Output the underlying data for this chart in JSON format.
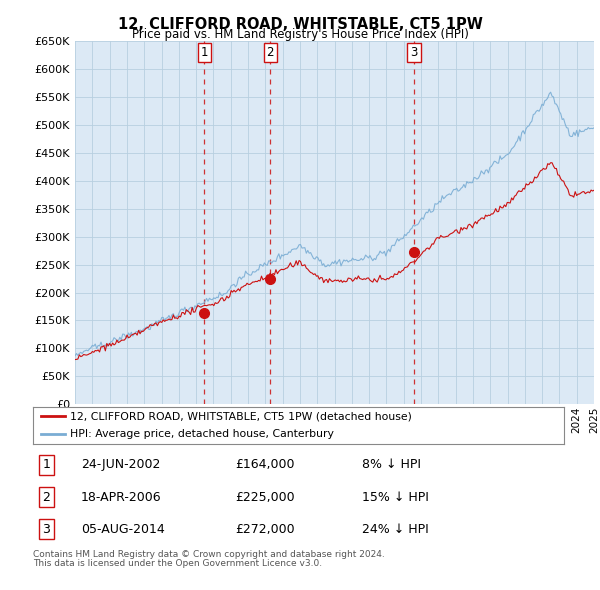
{
  "title": "12, CLIFFORD ROAD, WHITSTABLE, CT5 1PW",
  "subtitle": "Price paid vs. HM Land Registry's House Price Index (HPI)",
  "ylabel_ticks": [
    "£0",
    "£50K",
    "£100K",
    "£150K",
    "£200K",
    "£250K",
    "£300K",
    "£350K",
    "£400K",
    "£450K",
    "£500K",
    "£550K",
    "£600K",
    "£650K"
  ],
  "ytick_values": [
    0,
    50000,
    100000,
    150000,
    200000,
    250000,
    300000,
    350000,
    400000,
    450000,
    500000,
    550000,
    600000,
    650000
  ],
  "hpi_color": "#7aadd4",
  "hpi_fill_color": "#c8dff0",
  "price_color": "#cc1111",
  "marker_color": "#cc1111",
  "background_color": "#ffffff",
  "chart_bg_color": "#dce9f5",
  "grid_color": "#b8cfe0",
  "transactions": [
    {
      "num": 1,
      "date": "24-JUN-2002",
      "price": 164000,
      "hpi_diff": "8% ↓ HPI",
      "x_year": 2002.48
    },
    {
      "num": 2,
      "date": "18-APR-2006",
      "price": 225000,
      "hpi_diff": "15% ↓ HPI",
      "x_year": 2006.29
    },
    {
      "num": 3,
      "date": "05-AUG-2014",
      "price": 272000,
      "hpi_diff": "24% ↓ HPI",
      "x_year": 2014.59
    }
  ],
  "legend_label_price": "12, CLIFFORD ROAD, WHITSTABLE, CT5 1PW (detached house)",
  "legend_label_hpi": "HPI: Average price, detached house, Canterbury",
  "footnote1": "Contains HM Land Registry data © Crown copyright and database right 2024.",
  "footnote2": "This data is licensed under the Open Government Licence v3.0.",
  "xmin": 1995,
  "xmax": 2025
}
